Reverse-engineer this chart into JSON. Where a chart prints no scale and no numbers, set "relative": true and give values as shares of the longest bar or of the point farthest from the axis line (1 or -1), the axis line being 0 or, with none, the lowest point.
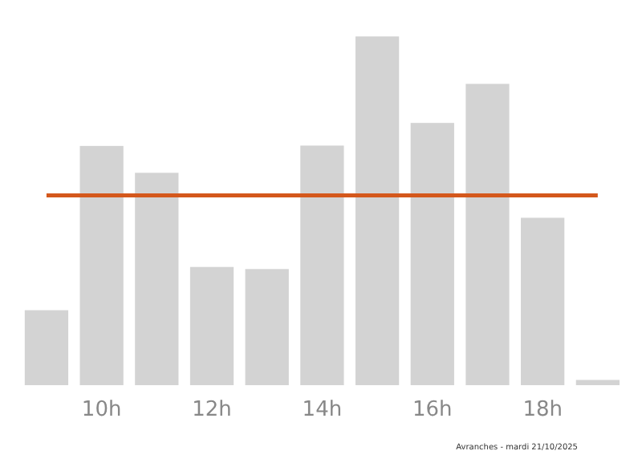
{
  "chart_data": {
    "type": "bar",
    "relative": true,
    "categories": [
      null,
      "10h",
      null,
      "12h",
      null,
      "14h",
      null,
      "16h",
      null,
      "18h",
      null
    ],
    "values": [
      0.215,
      0.686,
      0.609,
      0.339,
      0.333,
      0.687,
      1,
      0.752,
      0.864,
      0.48,
      0.015
    ],
    "color": "#d3d3d3",
    "ref_lines": [
      {
        "axis": "y",
        "value": 0.544,
        "color": "#d4581c"
      }
    ],
    "grid": false,
    "annotations": [
      "Avranches - mardi 21/10/2025"
    ]
  }
}
